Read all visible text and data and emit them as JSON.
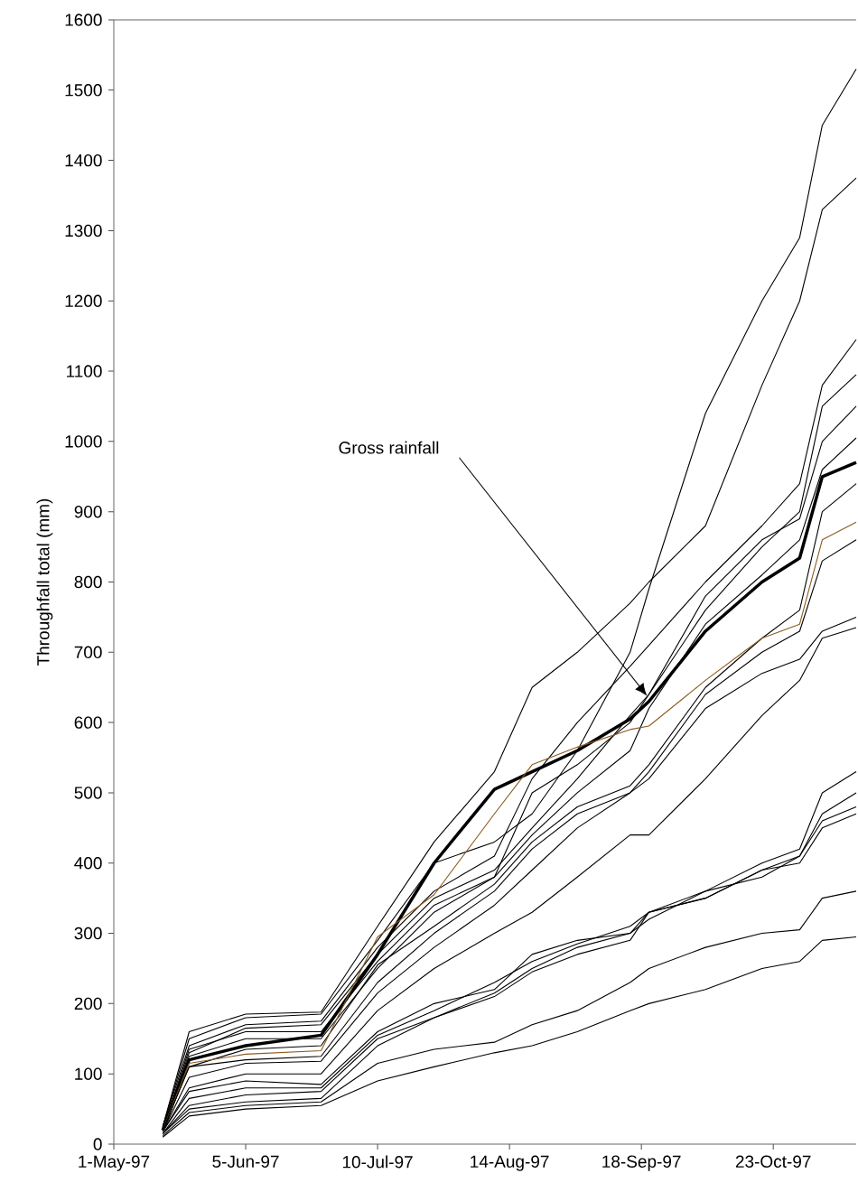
{
  "chart_data": {
    "type": "line",
    "ylabel": "Throughfall total (mm)",
    "x": [
      "1997-05-14",
      "1997-05-21",
      "1997-06-05",
      "1997-06-25",
      "1997-07-10",
      "1997-07-25",
      "1997-08-10",
      "1997-08-20",
      "1997-09-01",
      "1997-09-15",
      "1997-09-20",
      "1997-10-05",
      "1997-10-20",
      "1997-10-30",
      "1997-11-05",
      "1997-11-14"
    ],
    "xlim": [
      "1997-05-01",
      "1997-11-14"
    ],
    "xticks": [
      {
        "value": "1997-05-01",
        "label": "1-May-97"
      },
      {
        "value": "1997-06-05",
        "label": "5-Jun-97"
      },
      {
        "value": "1997-07-10",
        "label": "10-Jul-97"
      },
      {
        "value": "1997-08-14",
        "label": "14-Aug-97"
      },
      {
        "value": "1997-09-18",
        "label": "18-Sep-97"
      },
      {
        "value": "1997-10-23",
        "label": "23-Oct-97"
      }
    ],
    "ylim": [
      0,
      1600
    ],
    "yticks": [
      0,
      100,
      200,
      300,
      400,
      500,
      600,
      700,
      800,
      900,
      1000,
      1100,
      1200,
      1300,
      1400,
      1500,
      1600
    ],
    "legend": false,
    "marker": "none",
    "line_style": "solid",
    "series": [
      {
        "color": "#000000",
        "values": [
          25,
          150,
          180,
          185,
          290,
          400,
          430,
          470,
          560,
          700,
          790,
          1040,
          1200,
          1290,
          1450,
          1530
        ]
      },
      {
        "color": "#000000",
        "values": [
          25,
          160,
          185,
          188,
          310,
          430,
          530,
          650,
          700,
          770,
          800,
          880,
          1080,
          1200,
          1330,
          1375
        ]
      },
      {
        "color": "#000000",
        "values": [
          25,
          140,
          170,
          175,
          280,
          360,
          410,
          520,
          600,
          680,
          710,
          800,
          880,
          940,
          1080,
          1145
        ]
      },
      {
        "color": "#000000",
        "values": [
          20,
          130,
          165,
          170,
          270,
          350,
          390,
          450,
          520,
          610,
          640,
          760,
          850,
          900,
          1050,
          1095
        ]
      },
      {
        "color": "#000000",
        "values": [
          20,
          135,
          160,
          160,
          260,
          340,
          380,
          500,
          540,
          600,
          640,
          780,
          860,
          890,
          1000,
          1050
        ]
      },
      {
        "color": "#000000",
        "values": [
          20,
          125,
          150,
          150,
          250,
          330,
          380,
          440,
          500,
          560,
          620,
          740,
          810,
          860,
          960,
          1005
        ]
      },
      {
        "name": "Gross rainfall",
        "color": "#000000",
        "values": [
          20,
          120,
          140,
          155,
          270,
          400,
          505,
          530,
          560,
          605,
          630,
          730,
          800,
          834,
          950,
          970
        ]
      },
      {
        "color": "#000000",
        "values": [
          20,
          110,
          135,
          140,
          255,
          310,
          370,
          430,
          480,
          510,
          540,
          650,
          720,
          760,
          900,
          940
        ]
      },
      {
        "color": "#8c5a1e",
        "values": [
          20,
          115,
          128,
          133,
          295,
          355,
          470,
          540,
          565,
          590,
          595,
          660,
          720,
          740,
          860,
          885
        ]
      },
      {
        "color": "#000000",
        "values": [
          20,
          110,
          120,
          125,
          230,
          300,
          360,
          420,
          470,
          500,
          530,
          640,
          700,
          730,
          830,
          860
        ]
      },
      {
        "color": "#000000",
        "values": [
          18,
          95,
          115,
          118,
          215,
          280,
          340,
          390,
          450,
          500,
          520,
          620,
          670,
          690,
          730,
          750
        ]
      },
      {
        "color": "#000000",
        "values": [
          18,
          80,
          100,
          100,
          190,
          250,
          300,
          330,
          380,
          440,
          440,
          520,
          610,
          660,
          720,
          735
        ]
      },
      {
        "color": "#000000",
        "values": [
          18,
          75,
          90,
          85,
          160,
          200,
          220,
          270,
          290,
          300,
          330,
          360,
          400,
          420,
          500,
          530
        ]
      },
      {
        "color": "#000000",
        "values": [
          15,
          65,
          80,
          80,
          155,
          190,
          230,
          260,
          285,
          310,
          330,
          350,
          390,
          410,
          470,
          500
        ]
      },
      {
        "color": "#000000",
        "values": [
          15,
          55,
          70,
          75,
          150,
          180,
          215,
          250,
          280,
          300,
          320,
          360,
          380,
          410,
          460,
          480
        ]
      },
      {
        "color": "#000000",
        "values": [
          15,
          50,
          60,
          65,
          140,
          180,
          210,
          245,
          270,
          290,
          330,
          350,
          390,
          400,
          450,
          470
        ]
      },
      {
        "color": "#000000",
        "values": [
          12,
          45,
          55,
          60,
          115,
          135,
          145,
          170,
          190,
          230,
          250,
          280,
          300,
          305,
          350,
          360
        ]
      },
      {
        "color": "#000000",
        "values": [
          10,
          40,
          50,
          55,
          90,
          110,
          130,
          140,
          160,
          190,
          200,
          220,
          250,
          260,
          290,
          295
        ]
      }
    ]
  }
}
